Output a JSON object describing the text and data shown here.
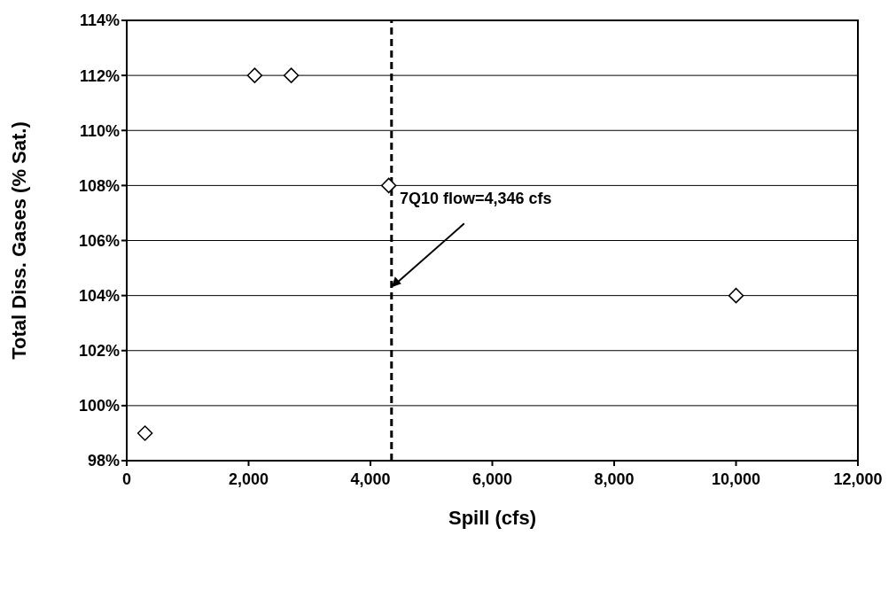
{
  "chart_data": {
    "type": "scatter",
    "xlabel": "Spill (cfs)",
    "ylabel": "Total Diss. Gases (% Sat.)",
    "x": [
      300,
      2100,
      2700,
      4300,
      10000
    ],
    "series": [
      {
        "color": "#000000",
        "values": [
          99,
          112,
          112,
          108,
          104
        ]
      }
    ],
    "marker": "diamond",
    "xlim": [
      0,
      12000
    ],
    "xticks": [
      0,
      {
        "value": 2000,
        "label": "2,000"
      },
      {
        "value": 4000,
        "label": "4,000"
      },
      {
        "value": 6000,
        "label": "6,000"
      },
      {
        "value": 8000,
        "label": "8,000"
      },
      {
        "value": 10000,
        "label": "10,000"
      },
      {
        "value": 12000,
        "label": "12,000"
      }
    ],
    "ylim": [
      98,
      114
    ],
    "yticks": [
      {
        "value": 98,
        "label": "98%"
      },
      {
        "value": 100,
        "label": "100%"
      },
      {
        "value": 102,
        "label": "102%"
      },
      {
        "value": 104,
        "label": "104%"
      },
      {
        "value": 106,
        "label": "106%"
      },
      {
        "value": 108,
        "label": "108%"
      },
      {
        "value": 110,
        "label": "110%"
      },
      {
        "value": 112,
        "label": "112%"
      },
      {
        "value": 114,
        "label": "114%"
      }
    ],
    "grid": "y",
    "legend": false,
    "ref_lines": [
      {
        "axis": "x",
        "value": 4346,
        "label": null,
        "color": "#000000",
        "line_style": "dashed"
      }
    ],
    "annotations": [
      {
        "text": "7Q10 flow=4,346 cfs",
        "x": 4346,
        "y": 104.3
      }
    ]
  }
}
